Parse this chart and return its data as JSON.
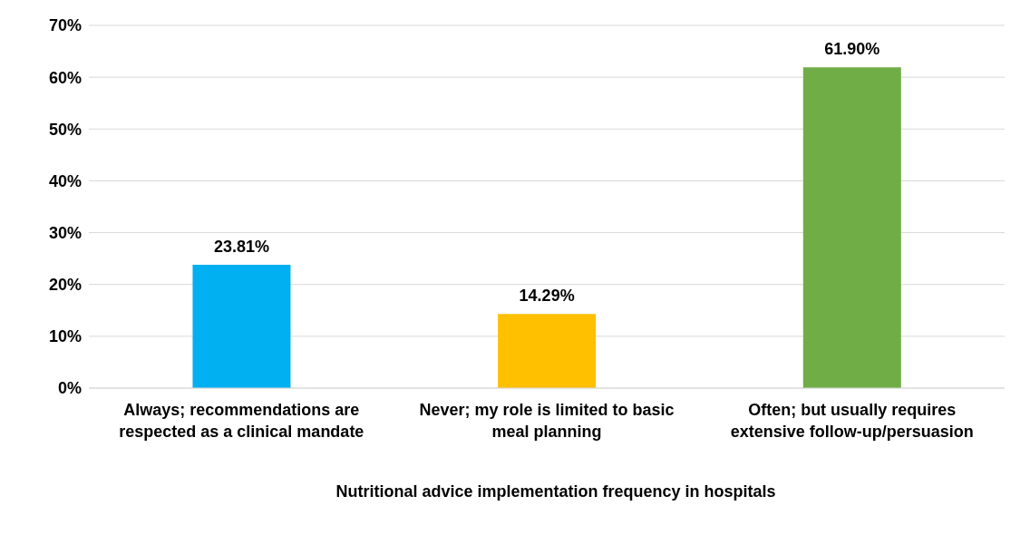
{
  "chart_data": {
    "type": "bar",
    "categories": [
      "Always; recommendations are respected as a clinical mandate",
      "Never; my role is limited to basic meal planning",
      "Often; but usually requires extensive follow-up/persuasion"
    ],
    "values": [
      23.81,
      14.29,
      61.9
    ],
    "colors": [
      "#00b0f0",
      "#ffc000",
      "#70ad47"
    ],
    "value_labels": [
      "23.81%",
      "14.29%",
      "61.90%"
    ],
    "xlabel": "Nutritional advice implementation frequency in hospitals",
    "ylim": [
      0,
      70
    ],
    "yticks": [
      {
        "value": 0,
        "label": "0%"
      },
      {
        "value": 10,
        "label": "10%"
      },
      {
        "value": 20,
        "label": "20%"
      },
      {
        "value": 30,
        "label": "30%"
      },
      {
        "value": 40,
        "label": "40%"
      },
      {
        "value": 50,
        "label": "50%"
      },
      {
        "value": 60,
        "label": "60%"
      },
      {
        "value": 70,
        "label": "70%"
      }
    ],
    "grid": "y"
  }
}
